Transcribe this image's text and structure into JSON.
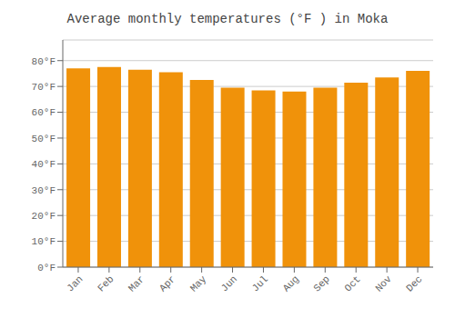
{
  "chart_data": {
    "type": "bar",
    "title": "Average monthly temperatures (°F ) in Moka",
    "categories": [
      "Jan",
      "Feb",
      "Mar",
      "Apr",
      "May",
      "Jun",
      "Jul",
      "Aug",
      "Sep",
      "Oct",
      "Nov",
      "Dec"
    ],
    "values": [
      77.0,
      77.5,
      76.5,
      75.5,
      72.5,
      69.5,
      68.5,
      68.0,
      69.5,
      71.5,
      73.5,
      76.0
    ],
    "color": "#F0920A",
    "ylim": [
      0,
      88
    ],
    "yticks": [
      {
        "value": 0,
        "label": "0°F"
      },
      {
        "value": 10,
        "label": "10°F"
      },
      {
        "value": 20,
        "label": "20°F"
      },
      {
        "value": 30,
        "label": "30°F"
      },
      {
        "value": 40,
        "label": "40°F"
      },
      {
        "value": 50,
        "label": "50°F"
      },
      {
        "value": 60,
        "label": "60°F"
      },
      {
        "value": 70,
        "label": "70°F"
      },
      {
        "value": 80,
        "label": "80°F"
      }
    ],
    "grid": true
  }
}
